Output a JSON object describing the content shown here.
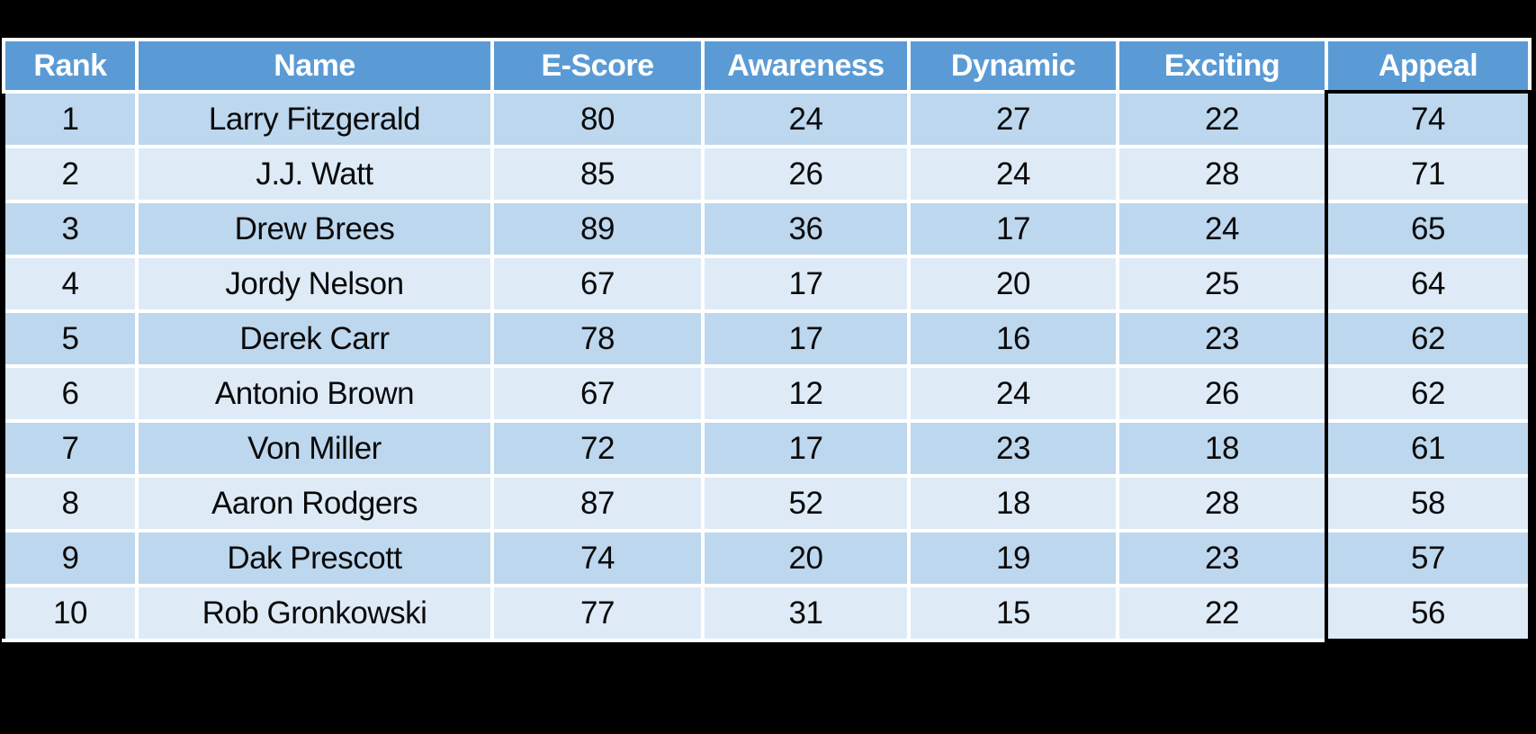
{
  "page": {
    "background_color": "#000000"
  },
  "colors": {
    "header_bg": "#5B9BD5",
    "header_text": "#FFFFFF",
    "row_odd_bg": "#BDD7EE",
    "row_even_bg": "#DEEBF7",
    "cell_text": "#0A0A0A",
    "divider": "#FFFFFF",
    "highlight_border": "#000000"
  },
  "table": {
    "columns": [
      {
        "key": "rank",
        "label": "Rank"
      },
      {
        "key": "name",
        "label": "Name"
      },
      {
        "key": "escore",
        "label": "E-Score"
      },
      {
        "key": "awareness",
        "label": "Awareness"
      },
      {
        "key": "dynamic",
        "label": "Dynamic"
      },
      {
        "key": "exciting",
        "label": "Exciting"
      },
      {
        "key": "appeal",
        "label": "Appeal"
      }
    ],
    "highlighted_column": "appeal",
    "rows": [
      {
        "rank": "1",
        "name": "Larry Fitzgerald",
        "escore": "80",
        "awareness": "24",
        "dynamic": "27",
        "exciting": "22",
        "appeal": "74"
      },
      {
        "rank": "2",
        "name": "J.J. Watt",
        "escore": "85",
        "awareness": "26",
        "dynamic": "24",
        "exciting": "28",
        "appeal": "71"
      },
      {
        "rank": "3",
        "name": "Drew Brees",
        "escore": "89",
        "awareness": "36",
        "dynamic": "17",
        "exciting": "24",
        "appeal": "65"
      },
      {
        "rank": "4",
        "name": "Jordy Nelson",
        "escore": "67",
        "awareness": "17",
        "dynamic": "20",
        "exciting": "25",
        "appeal": "64"
      },
      {
        "rank": "5",
        "name": "Derek Carr",
        "escore": "78",
        "awareness": "17",
        "dynamic": "16",
        "exciting": "23",
        "appeal": "62"
      },
      {
        "rank": "6",
        "name": "Antonio Brown",
        "escore": "67",
        "awareness": "12",
        "dynamic": "24",
        "exciting": "26",
        "appeal": "62"
      },
      {
        "rank": "7",
        "name": "Von Miller",
        "escore": "72",
        "awareness": "17",
        "dynamic": "23",
        "exciting": "18",
        "appeal": "61"
      },
      {
        "rank": "8",
        "name": "Aaron Rodgers",
        "escore": "87",
        "awareness": "52",
        "dynamic": "18",
        "exciting": "28",
        "appeal": "58"
      },
      {
        "rank": "9",
        "name": "Dak Prescott",
        "escore": "74",
        "awareness": "20",
        "dynamic": "19",
        "exciting": "23",
        "appeal": "57"
      },
      {
        "rank": "10",
        "name": "Rob Gronkowski",
        "escore": "77",
        "awareness": "31",
        "dynamic": "15",
        "exciting": "22",
        "appeal": "56"
      }
    ]
  },
  "chart_data": {
    "type": "table",
    "title": "",
    "columns": [
      "Rank",
      "Name",
      "E-Score",
      "Awareness",
      "Dynamic",
      "Exciting",
      "Appeal"
    ],
    "rows": [
      [
        1,
        "Larry Fitzgerald",
        80,
        24,
        27,
        22,
        74
      ],
      [
        2,
        "J.J. Watt",
        85,
        26,
        24,
        28,
        71
      ],
      [
        3,
        "Drew Brees",
        89,
        36,
        17,
        24,
        65
      ],
      [
        4,
        "Jordy Nelson",
        67,
        17,
        20,
        25,
        64
      ],
      [
        5,
        "Derek Carr",
        78,
        17,
        16,
        23,
        62
      ],
      [
        6,
        "Antonio Brown",
        67,
        12,
        24,
        26,
        62
      ],
      [
        7,
        "Von Miller",
        72,
        17,
        23,
        18,
        61
      ],
      [
        8,
        "Aaron Rodgers",
        87,
        52,
        18,
        28,
        58
      ],
      [
        9,
        "Dak Prescott",
        74,
        20,
        19,
        23,
        57
      ],
      [
        10,
        "Rob Gronkowski",
        77,
        31,
        15,
        22,
        56
      ]
    ],
    "highlighted_column": "Appeal",
    "sorted_by": "Appeal descending"
  }
}
